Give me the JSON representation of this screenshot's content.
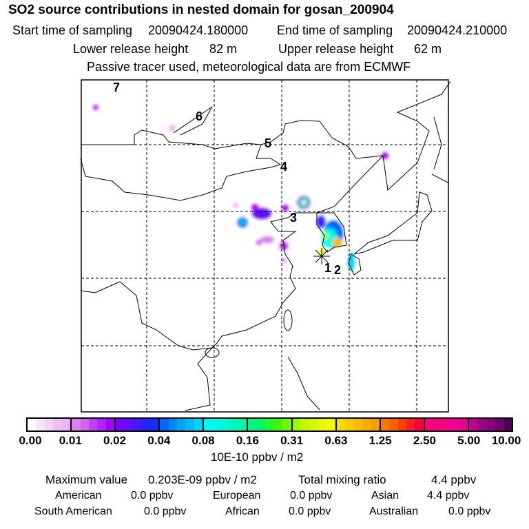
{
  "header": {
    "title": "SO2 source contributions in nested domain for gosan_200904",
    "start_label": "Start time of sampling",
    "start_value": "20090424.180000",
    "end_label": "End time of sampling",
    "end_value": "20090424.210000",
    "lower_label": "Lower release height",
    "lower_value": "82 m",
    "upper_label": "Upper release height",
    "upper_value": "62 m",
    "note": "Passive tracer used, meteorological data are from ECMWF"
  },
  "map": {
    "release_labels": [
      "1",
      "2",
      "3",
      "4",
      "5",
      "6",
      "7"
    ],
    "receptor_marker": "asterisk-icon"
  },
  "colorbar": {
    "ticks": [
      "0.00",
      "0.01",
      "0.02",
      "0.04",
      "0.08",
      "0.16",
      "0.31",
      "0.63",
      "1.25",
      "2.50",
      "5.00",
      "10.00"
    ],
    "unit": "10E-10 ppbv / m2",
    "segments": [
      [
        "#ffffff",
        "#f8e4f8",
        "#f4d0f4",
        "#f0c0f4",
        "#ecb4f4"
      ],
      [
        "#dc80f0",
        "#cc64f0",
        "#c040f8",
        "#b420f8",
        "#a800f8"
      ],
      [
        "#7c00f8",
        "#6010f8",
        "#4818f8",
        "#3020f8",
        "#1030f8"
      ],
      [
        "#0068f8",
        "#0088f8",
        "#00a4f8",
        "#00bcf8",
        "#00d4f8"
      ],
      [
        "#00f8f8",
        "#00f8e8",
        "#00f8d4",
        "#00f8c0",
        "#00f8ac"
      ],
      [
        "#00f880",
        "#00f860",
        "#20f830",
        "#40f800",
        "#70f800"
      ],
      [
        "#a0f800",
        "#c0f800",
        "#d4f800",
        "#e8f800",
        "#f8f800"
      ],
      [
        "#f8dc00",
        "#f8cc00",
        "#f8bc00",
        "#f8ac00",
        "#f89c00"
      ],
      [
        "#f87800",
        "#f86000",
        "#f84000",
        "#f82020",
        "#f80040"
      ],
      [
        "#f80080",
        "#f80080",
        "#f80088",
        "#f00090",
        "#e80090"
      ],
      [
        "#c00090",
        "#a00088",
        "#880080",
        "#700070",
        "#500050"
      ]
    ]
  },
  "summary": {
    "max_label": "Maximum value",
    "max_value": "0.203E-09 ppbv / m2",
    "total_label": "Total mixing ratio",
    "total_value": "4.4 ppbv",
    "regions": [
      {
        "name": "American",
        "value": "0.0 ppbv"
      },
      {
        "name": "European",
        "value": "0.0 ppbv"
      },
      {
        "name": "Asian",
        "value": "4.4 ppbv"
      },
      {
        "name": "South American",
        "value": "0.0 ppbv"
      },
      {
        "name": "African",
        "value": "0.0 ppbv"
      },
      {
        "name": "Australian",
        "value": "0.0 ppbv"
      }
    ]
  }
}
